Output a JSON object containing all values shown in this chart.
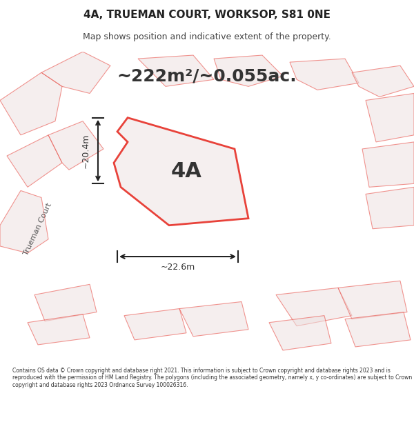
{
  "title": "4A, TRUEMAN COURT, WORKSOP, S81 0NE",
  "subtitle": "Map shows position and indicative extent of the property.",
  "area_text": "~222m²/~0.055ac.",
  "label_4a": "4A",
  "dim_width": "~22.6m",
  "dim_height": "~20.4m",
  "road_label": "Trueman Court",
  "footer": "Contains OS data © Crown copyright and database right 2021. This information is subject to Crown copyright and database rights 2023 and is reproduced with the permission of HM Land Registry. The polygons (including the associated geometry, namely x, y co-ordinates) are subject to Crown copyright and database rights 2023 Ordnance Survey 100026316.",
  "bg_color": "#f5f0f0",
  "map_bg": "#f5efef",
  "plot_fill": "#f5efef",
  "plot_edge": "#e8423a",
  "other_fill": "#e8d8d8",
  "other_edge": "#e8423a",
  "footer_bg": "#ffffff",
  "title_bg": "#ffffff"
}
